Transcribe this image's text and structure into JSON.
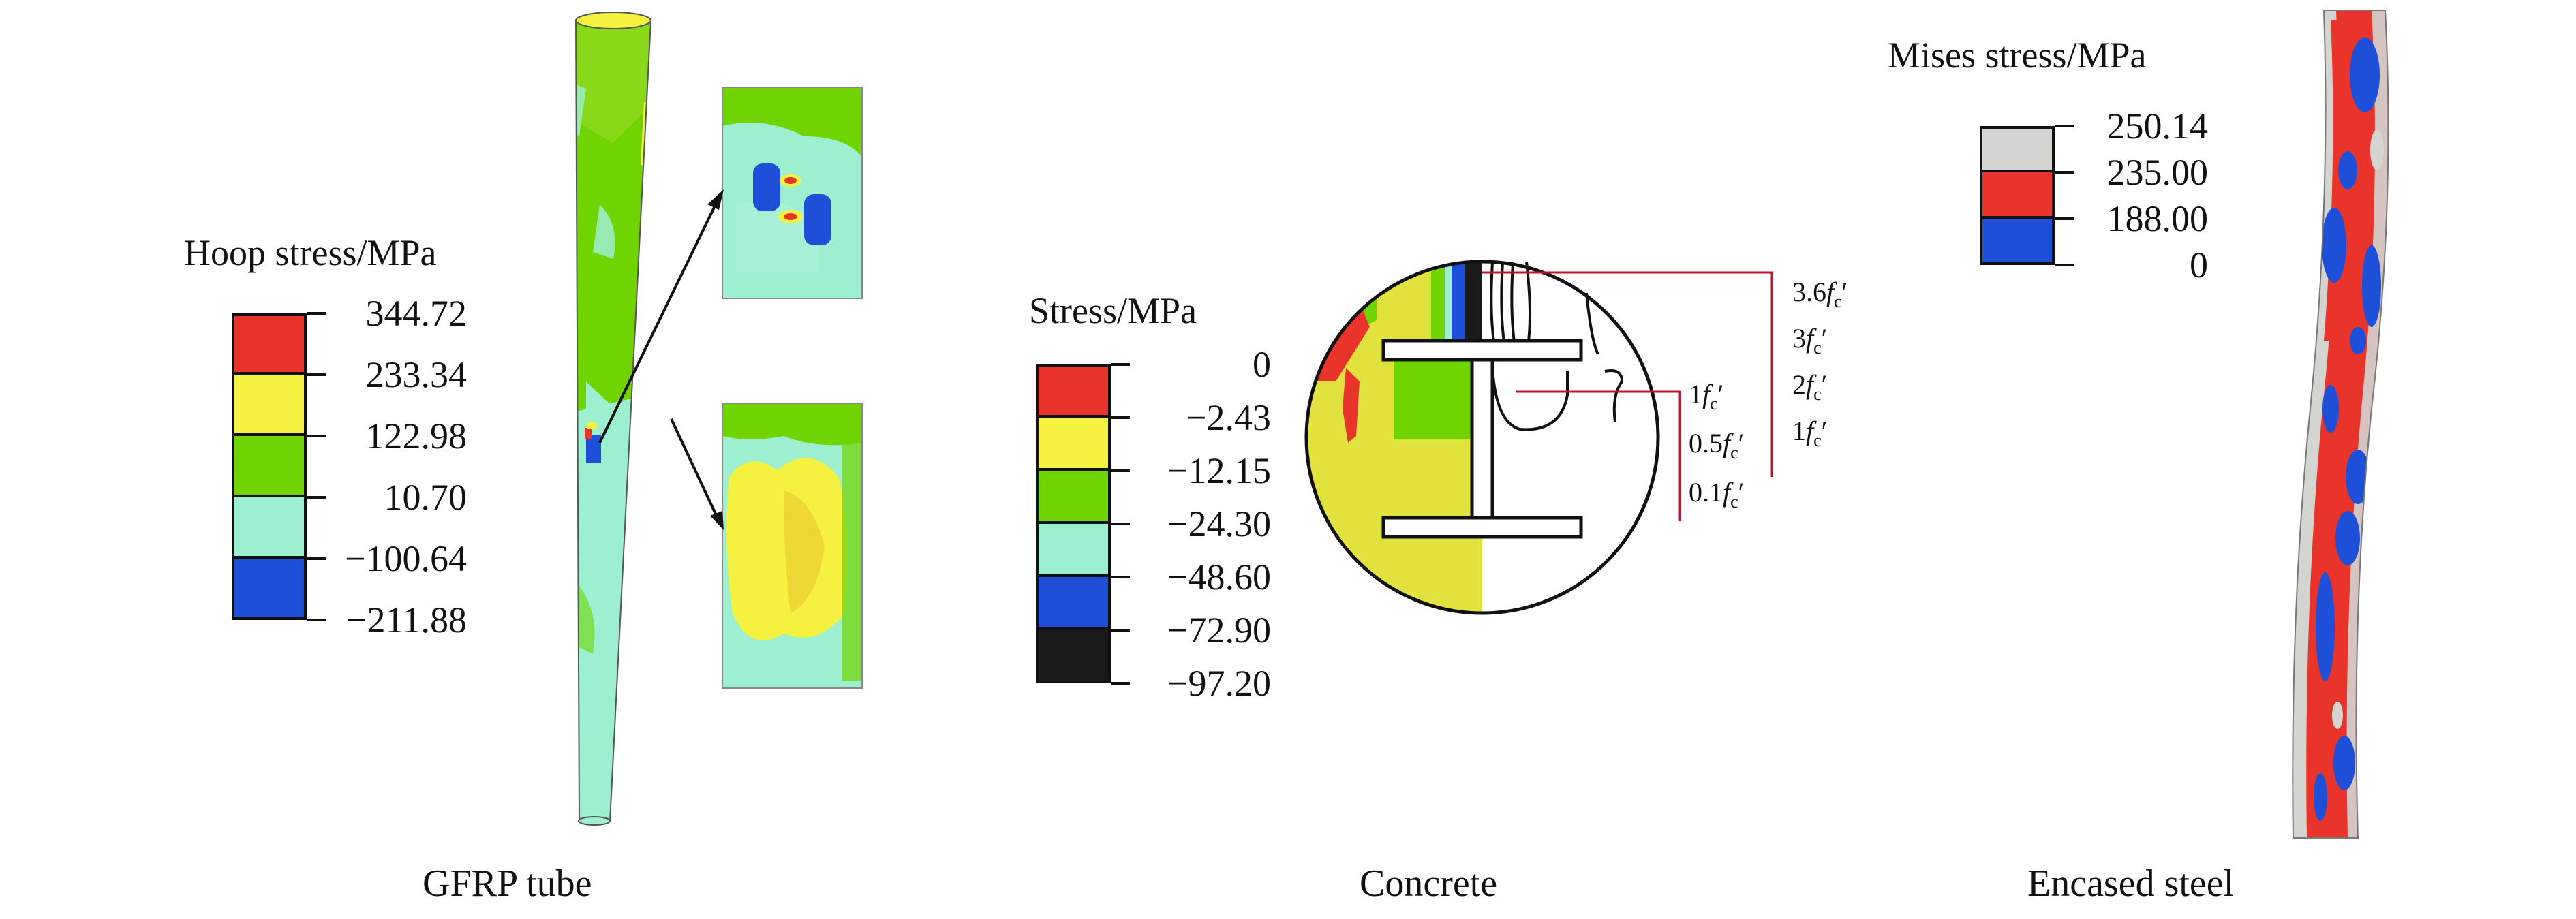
{
  "panels": [
    {
      "caption": "GFRP tube",
      "legend": {
        "title": "Hoop stress/MPa",
        "labels": [
          "344.72",
          "233.34",
          "122.98",
          "10.70",
          "−100.64",
          "−211.88"
        ],
        "colors": [
          "#e8342a",
          "#f4f140",
          "#70d400",
          "#9cf0cf",
          "#1e4fd8"
        ]
      }
    },
    {
      "caption": "Concrete",
      "legend": {
        "title": "Stress/MPa",
        "labels": [
          "0",
          "−2.43",
          "−12.15",
          "−24.30",
          "−48.60",
          "−72.90",
          "−97.20"
        ],
        "colors": [
          "#e8342a",
          "#f4f140",
          "#70d400",
          "#9cf0cf",
          "#1e4fd8",
          "#1a1a1a"
        ]
      },
      "fc_labels_right": [
        "3.6",
        "3",
        "2",
        "1"
      ],
      "fc_labels_left": [
        "1",
        "0.5",
        "0.1"
      ],
      "fc_symbol": "f",
      "fc_sub": "c",
      "fc_prime": "′"
    },
    {
      "caption": "Encased steel",
      "legend": {
        "title": "Mises stress/MPa",
        "labels": [
          "250.14",
          "235.00",
          "188.00",
          "0"
        ],
        "colors": [
          "#d4d4d0",
          "#e8342a",
          "#1e4fd8"
        ]
      }
    }
  ]
}
